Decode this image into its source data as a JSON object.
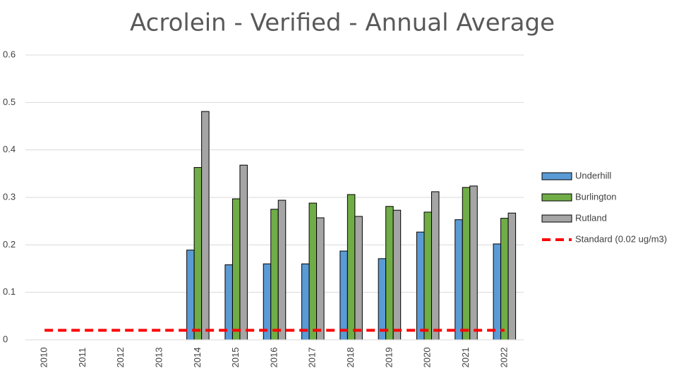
{
  "chart_data": {
    "type": "bar",
    "title": "Acrolein  - Verified  - Annual Average",
    "categories": [
      "2010",
      "2011",
      "2012",
      "2013",
      "2014",
      "2015",
      "2016",
      "2017",
      "2018",
      "2019",
      "2020",
      "2021",
      "2022"
    ],
    "series": [
      {
        "name": "Underhill",
        "color": "#5b9bd5",
        "values": [
          null,
          null,
          null,
          null,
          0.189,
          0.158,
          0.16,
          0.16,
          0.187,
          0.171,
          0.227,
          0.253,
          0.202
        ]
      },
      {
        "name": "Burlington",
        "color": "#70ad47",
        "values": [
          null,
          null,
          null,
          null,
          0.363,
          0.297,
          0.275,
          0.288,
          0.306,
          0.281,
          0.269,
          0.321,
          0.256
        ]
      },
      {
        "name": "Rutland",
        "color": "#a5a5a5",
        "values": [
          null,
          null,
          null,
          null,
          0.481,
          0.368,
          0.294,
          0.257,
          0.26,
          0.273,
          0.312,
          0.324,
          0.267
        ]
      },
      {
        "name": "Standard (0.02 ug/m3)",
        "color": "#ff0000",
        "type": "line",
        "values": [
          0.02,
          0.02,
          0.02,
          0.02,
          0.02,
          0.02,
          0.02,
          0.02,
          0.02,
          0.02,
          0.02,
          0.02,
          0.02
        ]
      }
    ],
    "ylim": [
      0,
      0.6
    ],
    "yticks": [
      0,
      0.1,
      0.2,
      0.3,
      0.4,
      0.5,
      0.6
    ],
    "grid": true,
    "legend": "right"
  }
}
